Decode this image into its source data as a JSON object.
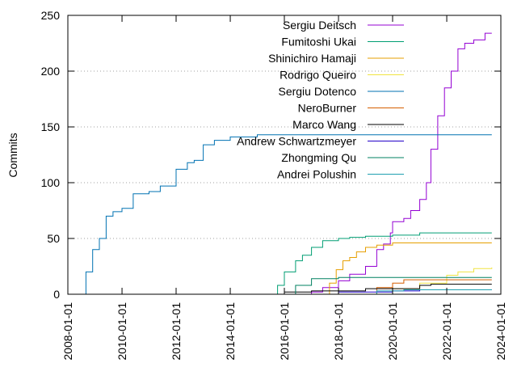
{
  "chart_data": {
    "type": "line",
    "ylabel": "Commits",
    "ylim": [
      0,
      250
    ],
    "xlim": [
      "2008-01-01",
      "2024-01-01"
    ],
    "x_ticks": [
      "2008-01-01",
      "2010-01-01",
      "2012-01-01",
      "2014-01-01",
      "2016-01-01",
      "2018-01-01",
      "2020-01-01",
      "2022-01-01",
      "2024-01-01"
    ],
    "y_ticks": [
      0,
      50,
      100,
      150,
      200,
      250
    ],
    "grid": "y-dotted",
    "legend_position": "top-right",
    "series": [
      {
        "name": "Sergiu Deitsch",
        "color": "#9400d3",
        "points": [
          [
            "2016-06-01",
            0
          ],
          [
            "2017-01-01",
            2
          ],
          [
            "2017-06-01",
            6
          ],
          [
            "2018-01-01",
            12
          ],
          [
            "2018-06-01",
            18
          ],
          [
            "2019-01-01",
            25
          ],
          [
            "2019-06-01",
            40
          ],
          [
            "2019-09-01",
            45
          ],
          [
            "2019-12-01",
            55
          ],
          [
            "2020-01-01",
            65
          ],
          [
            "2020-06-01",
            68
          ],
          [
            "2020-09-01",
            75
          ],
          [
            "2021-01-01",
            85
          ],
          [
            "2021-04-01",
            100
          ],
          [
            "2021-06-01",
            130
          ],
          [
            "2021-09-01",
            160
          ],
          [
            "2021-12-01",
            185
          ],
          [
            "2022-03-01",
            200
          ],
          [
            "2022-06-01",
            220
          ],
          [
            "2022-09-01",
            225
          ],
          [
            "2023-01-01",
            228
          ],
          [
            "2023-06-01",
            234
          ],
          [
            "2023-09-01",
            234
          ]
        ]
      },
      {
        "name": "Fumitoshi Ukai",
        "color": "#009e73",
        "points": [
          [
            "2015-08-01",
            0
          ],
          [
            "2015-10-01",
            8
          ],
          [
            "2016-01-01",
            20
          ],
          [
            "2016-06-01",
            30
          ],
          [
            "2016-09-01",
            35
          ],
          [
            "2017-01-01",
            42
          ],
          [
            "2017-06-01",
            48
          ],
          [
            "2018-01-01",
            50
          ],
          [
            "2018-06-01",
            51
          ],
          [
            "2019-01-01",
            52
          ],
          [
            "2020-01-01",
            53
          ],
          [
            "2021-01-01",
            55
          ],
          [
            "2023-09-01",
            55
          ]
        ]
      },
      {
        "name": "Shinichiro Hamaji",
        "color": "#e69f00",
        "points": [
          [
            "2017-06-01",
            0
          ],
          [
            "2017-09-01",
            10
          ],
          [
            "2017-12-01",
            22
          ],
          [
            "2018-03-01",
            30
          ],
          [
            "2018-06-01",
            33
          ],
          [
            "2018-09-01",
            38
          ],
          [
            "2019-01-01",
            42
          ],
          [
            "2019-06-01",
            44
          ],
          [
            "2020-01-01",
            46
          ],
          [
            "2023-09-01",
            46
          ]
        ]
      },
      {
        "name": "Rodrigo Queiro",
        "color": "#f0e442",
        "points": [
          [
            "2019-06-01",
            0
          ],
          [
            "2020-01-01",
            5
          ],
          [
            "2021-01-01",
            10
          ],
          [
            "2022-01-01",
            17
          ],
          [
            "2022-06-01",
            20
          ],
          [
            "2023-01-01",
            23
          ],
          [
            "2023-09-01",
            24
          ]
        ]
      },
      {
        "name": "Sergiu Dotenco",
        "color": "#0072b2",
        "points": [
          [
            "2008-06-01",
            0
          ],
          [
            "2008-09-01",
            20
          ],
          [
            "2008-12-01",
            40
          ],
          [
            "2009-03-01",
            50
          ],
          [
            "2009-06-01",
            70
          ],
          [
            "2009-09-01",
            74
          ],
          [
            "2010-01-01",
            77
          ],
          [
            "2010-06-01",
            90
          ],
          [
            "2011-01-01",
            92
          ],
          [
            "2011-06-01",
            97
          ],
          [
            "2012-01-01",
            112
          ],
          [
            "2012-06-01",
            118
          ],
          [
            "2012-09-01",
            120
          ],
          [
            "2013-01-01",
            134
          ],
          [
            "2013-06-01",
            138
          ],
          [
            "2014-01-01",
            141
          ],
          [
            "2015-01-01",
            143
          ],
          [
            "2023-09-01",
            143
          ]
        ]
      },
      {
        "name": "NeroBurner",
        "color": "#d55e00",
        "points": [
          [
            "2019-01-01",
            0
          ],
          [
            "2019-06-01",
            6
          ],
          [
            "2020-01-01",
            10
          ],
          [
            "2020-06-01",
            13
          ],
          [
            "2023-09-01",
            13
          ]
        ]
      },
      {
        "name": "Marco Wang",
        "color": "#000000",
        "points": [
          [
            "2015-10-01",
            0
          ],
          [
            "2016-01-01",
            2
          ],
          [
            "2017-01-01",
            3
          ],
          [
            "2019-01-01",
            5
          ],
          [
            "2021-01-01",
            8
          ],
          [
            "2021-06-01",
            9
          ],
          [
            "2023-09-01",
            9
          ]
        ]
      },
      {
        "name": "Andrew Schwartzmeyer",
        "color": "#2200c8",
        "points": [
          [
            "2016-06-01",
            0
          ],
          [
            "2018-01-01",
            2
          ],
          [
            "2020-01-01",
            3
          ],
          [
            "2021-01-01",
            4
          ],
          [
            "2023-09-01",
            4
          ]
        ]
      },
      {
        "name": "Zhongming Qu",
        "color": "#008060",
        "points": [
          [
            "2016-01-01",
            0
          ],
          [
            "2016-06-01",
            8
          ],
          [
            "2017-01-01",
            14
          ],
          [
            "2018-01-01",
            15
          ],
          [
            "2023-09-01",
            15
          ]
        ]
      },
      {
        "name": "Andrei Polushin",
        "color": "#20a0b0",
        "points": [
          [
            "2018-01-01",
            0
          ],
          [
            "2019-06-01",
            3
          ],
          [
            "2020-06-01",
            4
          ],
          [
            "2023-09-01",
            4
          ]
        ]
      }
    ]
  }
}
